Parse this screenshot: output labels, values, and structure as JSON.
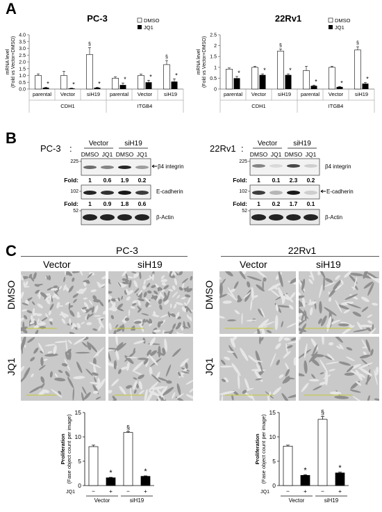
{
  "panels": {
    "A": {
      "letter": "A",
      "charts": [
        {
          "title": "PC-3",
          "ylabel_1": "mRNA level",
          "ylabel_2": "(Fold vs Vector+DMSO)",
          "legend": [
            "DMSO",
            "JQ1"
          ],
          "groups": [
            "CDH1",
            "ITGB4"
          ],
          "chart_data": {
            "type": "bar",
            "categories": [
              "parental",
              "Vector",
              "siH19",
              "parental",
              "Vector",
              "siH19"
            ],
            "series": [
              {
                "name": "DMSO",
                "values": [
                  1.0,
                  1.0,
                  2.55,
                  0.8,
                  1.0,
                  1.8
                ],
                "errors": [
                  0.12,
                  0.3,
                  0.5,
                  0.1,
                  0.1,
                  0.3
                ]
              },
              {
                "name": "JQ1",
                "values": [
                  0.1,
                  0.05,
                  0.1,
                  0.3,
                  0.5,
                  0.55
                ],
                "errors": [
                  0.03,
                  0.02,
                  0.03,
                  0.15,
                  0.15,
                  0.2
                ]
              }
            ],
            "ylim": [
              0,
              4.0
            ],
            "yticks": [
              "0.0",
              "0.5",
              "1.0",
              "1.5",
              "2.0",
              "2.5",
              "3.0",
              "3.5",
              "4.0"
            ],
            "yticks_values": [
              0,
              0.5,
              1.0,
              1.5,
              2.0,
              2.5,
              3.0,
              3.5,
              4.0
            ],
            "jq1_stars": [
              "*",
              "*",
              "*",
              "*",
              "*",
              "*"
            ],
            "dmso_marks": [
              "",
              "",
              "§",
              "",
              "",
              "§"
            ]
          }
        },
        {
          "title": "22Rv1",
          "ylabel_1": "mRNA level",
          "ylabel_2": "(Fold vs Vector+DMSO)",
          "legend": [
            "DMSO",
            "JQ1"
          ],
          "groups": [
            "CDH1",
            "ITGB4"
          ],
          "chart_data": {
            "type": "bar",
            "categories": [
              "parental",
              "Vector",
              "siH19",
              "parental",
              "Vector",
              "siH19"
            ],
            "series": [
              {
                "name": "DMSO",
                "values": [
                  0.92,
                  1.0,
                  1.75,
                  0.85,
                  1.0,
                  1.8
                ],
                "errors": [
                  0.05,
                  0.05,
                  0.1,
                  0.2,
                  0.05,
                  0.15
                ]
              },
              {
                "name": "JQ1",
                "values": [
                  0.5,
                  0.65,
                  0.65,
                  0.15,
                  0.1,
                  0.25
                ],
                "errors": [
                  0.08,
                  0.05,
                  0.05,
                  0.03,
                  0.02,
                  0.05
                ]
              }
            ],
            "ylim": [
              0,
              2.5
            ],
            "yticks": [
              "0",
              "0.5",
              "1",
              "1.5",
              "2",
              "2.5"
            ],
            "yticks_values": [
              0,
              0.5,
              1,
              1.5,
              2,
              2.5
            ],
            "jq1_stars": [
              "*",
              "*",
              "*",
              "*",
              "*",
              "*"
            ],
            "dmso_marks": [
              "",
              "",
              "§",
              "",
              "",
              "§"
            ]
          }
        }
      ]
    },
    "B": {
      "letter": "B",
      "left": {
        "cell": "PC-3",
        "colon": ":",
        "vector": "Vector",
        "sih19": "siH19",
        "lanes": [
          "DMSO",
          "JQ1",
          "DMSO",
          "JQ1"
        ],
        "m225": "225",
        "m102": "102",
        "m52": "52",
        "fold_label": "Fold:",
        "fold1": [
          "1",
          "0.6",
          "1.9",
          "0.2"
        ],
        "fold2": [
          "1",
          "0.9",
          "1.8",
          "0.6"
        ],
        "band1": "β4 integrin",
        "band2": "E-cadherin",
        "band3": "β-Actin"
      },
      "right": {
        "cell": "22Rv1",
        "colon": ":",
        "vector": "Vector",
        "sih19": "siH19",
        "lanes": [
          "DMSO",
          "JQ1",
          "DMSO",
          "JQ1"
        ],
        "m225": "225",
        "m102": "102",
        "m52": "52",
        "fold_label": "Fold:",
        "fold1": [
          "1",
          "0.1",
          "2.3",
          "0.2"
        ],
        "fold2": [
          "1",
          "0.2",
          "1.7",
          "0.1"
        ],
        "band1": "β4 integrin",
        "band2": "E-cadherin",
        "band3": "β-Actin"
      }
    },
    "C": {
      "letter": "C",
      "left": {
        "cell": "PC-3",
        "col1": "Vector",
        "col2": "siH19",
        "row1": "DMSO",
        "row2": "JQ1",
        "ylabel_1": "Proliferation",
        "ylabel_2": "(Fase object count per image)",
        "jq1_label": "JQ1",
        "signs": [
          "−",
          "+",
          "−",
          "+"
        ],
        "groups": [
          "Vector",
          "siH19"
        ],
        "chart_data": {
          "type": "bar",
          "categories": [
            "Vector −",
            "Vector +",
            "siH19 −",
            "siH19 +"
          ],
          "values": [
            8.0,
            1.6,
            10.9,
            1.9
          ],
          "errors": [
            0.3,
            0.1,
            0.2,
            0.1
          ],
          "fills": [
            "#ffffff",
            "#000000",
            "#ffffff",
            "#000000"
          ],
          "marks": [
            "",
            "*",
            "§",
            "*"
          ],
          "ylim": [
            0,
            15
          ],
          "yticks": [
            "0",
            "5",
            "10",
            "15"
          ],
          "yticks_values": [
            0,
            5,
            10,
            15
          ]
        }
      },
      "right": {
        "cell": "22Rv1",
        "col1": "Vector",
        "col2": "siH19",
        "row1": "DMSO",
        "row2": "JQ1",
        "ylabel_1": "Proliferation",
        "ylabel_2": "(Fase object count per image)",
        "jq1_label": "JQ1",
        "signs": [
          "−",
          "+",
          "−",
          "+"
        ],
        "groups": [
          "Vector",
          "siH19"
        ],
        "chart_data": {
          "type": "bar",
          "categories": [
            "Vector −",
            "Vector +",
            "siH19 −",
            "siH19 +"
          ],
          "values": [
            8.1,
            2.1,
            13.6,
            2.6
          ],
          "errors": [
            0.2,
            0.15,
            0.6,
            0.15
          ],
          "fills": [
            "#ffffff",
            "#000000",
            "#ffffff",
            "#000000"
          ],
          "marks": [
            "",
            "*",
            "§",
            "*"
          ],
          "ylim": [
            0,
            15
          ],
          "yticks": [
            "0",
            "5",
            "10",
            "15"
          ],
          "yticks_values": [
            0,
            5,
            10,
            15
          ]
        }
      }
    }
  }
}
